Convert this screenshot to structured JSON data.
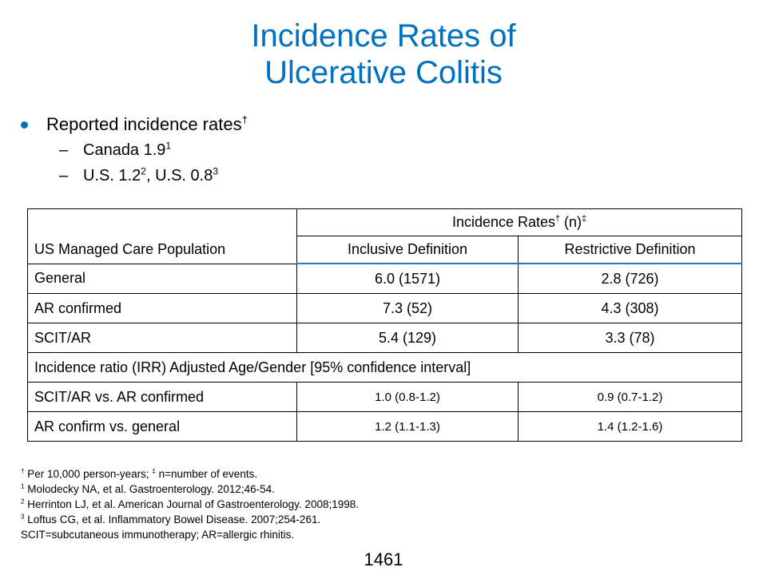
{
  "slide": {
    "title_line1": "Incidence Rates of",
    "title_line2": "Ulcerative Colitis",
    "colors": {
      "title": "#0070C0",
      "bullet": "#0070C0",
      "header_rule": "#2E75B6"
    },
    "bullet": {
      "text": "Reported incidence rates",
      "sup": "†"
    },
    "sub_bullets": [
      {
        "dash": "–",
        "text": "Canada 1.9",
        "sup": "1"
      },
      {
        "dash": "–",
        "text_a": "U.S. 1.2",
        "sup_a": "2",
        "text_b": ", U.S. 0.8",
        "sup_b": "3"
      }
    ],
    "table": {
      "header_group": {
        "text": "Incidence Rates",
        "sup1": "†",
        "mid": " (n)",
        "sup2": "‡"
      },
      "columns": [
        "US Managed Care Population",
        "Inclusive Definition",
        "Restrictive Definition"
      ],
      "rows": [
        [
          "General",
          "6.0 (1571)",
          "2.8 (726)"
        ],
        [
          "AR confirmed",
          "7.3 (52)",
          "4.3 (308)"
        ],
        [
          "SCIT/AR",
          "5.4 (129)",
          "3.3 (78)"
        ]
      ],
      "section_label": "Incidence ratio (IRR) Adjusted Age/Gender [95% confidence interval]",
      "ratio_rows": [
        [
          "SCIT/AR vs. AR confirmed",
          "1.0 (0.8-1.2)",
          "0.9 (0.7-1.2)"
        ],
        [
          "AR confirm vs. general",
          "1.2  (1.1-1.3)",
          "1.4  (1.2-1.6)"
        ]
      ]
    },
    "footnotes": [
      {
        "mark": "†",
        "text": " Per 10,000 person-years; ",
        "mark2": "‡",
        "text2": " n=number of events."
      },
      {
        "mark": "1",
        "text": " Molodecky NA, et al. Gastroenterology. 2012;46-54."
      },
      {
        "mark": "2",
        "text": " Herrinton LJ, et al. American Journal of Gastroenterology. 2008;1998."
      },
      {
        "mark": "3",
        "text": " Loftus CG, et al. Inflammatory Bowel Disease. 2007;254-261."
      },
      {
        "text": "SCIT=subcutaneous immunotherapy; AR=allergic rhinitis."
      }
    ],
    "page_number": "1461"
  }
}
